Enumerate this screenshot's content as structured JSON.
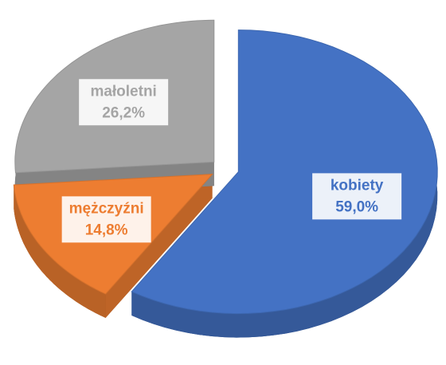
{
  "chart_data": {
    "type": "pie",
    "categories": [
      "kobiety",
      "mężczyźni",
      "małoletni"
    ],
    "values": [
      59.0,
      14.8,
      26.2
    ],
    "value_labels": [
      "59,0%",
      "14,8%",
      "26,2%"
    ],
    "colors": [
      "#4472c4",
      "#ed7d31",
      "#a5a5a5"
    ]
  }
}
